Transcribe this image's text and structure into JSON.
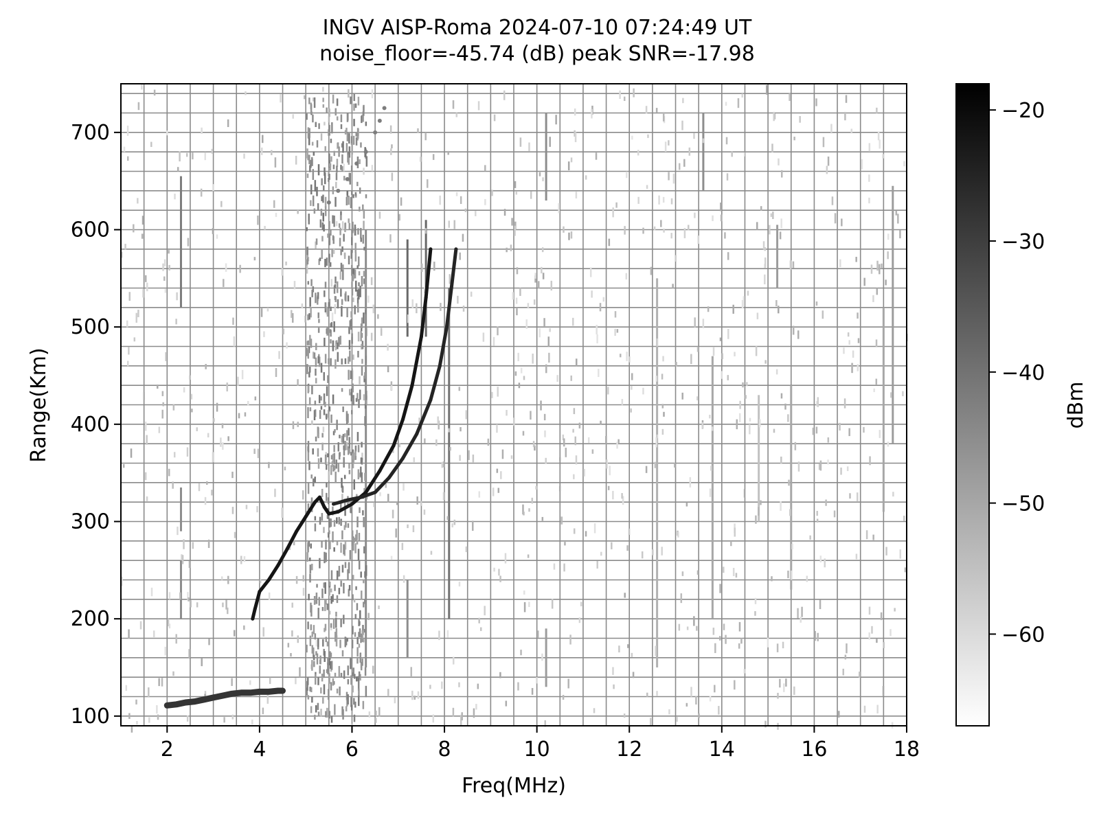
{
  "chart_data": {
    "type": "scatter",
    "title": "INGV AISP-Roma 2024-07-10 07:24:49 UT",
    "subtitle": "noise_floor=-45.74 (dB) peak SNR=-17.98",
    "xlabel": "Freq(MHz)",
    "ylabel": "Range(Km)",
    "xlim": [
      1,
      18
    ],
    "ylim": [
      90,
      750
    ],
    "xticks": [
      2,
      4,
      6,
      8,
      10,
      12,
      14,
      16,
      18
    ],
    "yticks": [
      100,
      200,
      300,
      400,
      500,
      600,
      700
    ],
    "grid": true,
    "grid_minor_x_step": 0.5,
    "grid_minor_y_step": 20,
    "colorbar": {
      "label": "dBm",
      "range": [
        -67,
        -18
      ],
      "ticks": [
        -20,
        -30,
        -40,
        -50,
        -60
      ],
      "tick_labels": [
        "−20",
        "−30",
        "−40",
        "−50",
        "−60"
      ],
      "colormap": [
        "#ffffff",
        "#000000"
      ]
    },
    "series": [
      {
        "role": "E-layer trace",
        "level_dBm": -28,
        "points": [
          [
            2.0,
            111
          ],
          [
            2.2,
            112
          ],
          [
            2.4,
            114
          ],
          [
            2.6,
            115
          ],
          [
            2.8,
            117
          ],
          [
            3.0,
            119
          ],
          [
            3.2,
            121
          ],
          [
            3.4,
            123
          ],
          [
            3.6,
            124
          ],
          [
            3.8,
            124
          ],
          [
            4.0,
            125
          ],
          [
            4.2,
            125
          ],
          [
            4.4,
            126
          ],
          [
            4.5,
            126
          ]
        ]
      },
      {
        "role": "F-layer ordinary trace",
        "level_dBm": -22,
        "points": [
          [
            3.85,
            200
          ],
          [
            3.9,
            210
          ],
          [
            4.0,
            228
          ],
          [
            4.2,
            240
          ],
          [
            4.4,
            255
          ],
          [
            4.6,
            272
          ],
          [
            4.8,
            290
          ],
          [
            5.0,
            305
          ],
          [
            5.2,
            320
          ],
          [
            5.3,
            325
          ],
          [
            5.4,
            315
          ],
          [
            5.5,
            308
          ],
          [
            5.7,
            310
          ],
          [
            6.0,
            318
          ],
          [
            6.3,
            330
          ],
          [
            6.6,
            352
          ],
          [
            6.9,
            378
          ],
          [
            7.1,
            405
          ],
          [
            7.3,
            440
          ],
          [
            7.5,
            490
          ],
          [
            7.6,
            530
          ],
          [
            7.7,
            580
          ]
        ]
      },
      {
        "role": "F-layer extraordinary trace",
        "level_dBm": -25,
        "points": [
          [
            5.6,
            318
          ],
          [
            5.9,
            322
          ],
          [
            6.2,
            325
          ],
          [
            6.5,
            330
          ],
          [
            6.8,
            345
          ],
          [
            7.1,
            365
          ],
          [
            7.4,
            390
          ],
          [
            7.7,
            425
          ],
          [
            7.9,
            460
          ],
          [
            8.05,
            500
          ],
          [
            8.15,
            540
          ],
          [
            8.25,
            580
          ]
        ]
      },
      {
        "role": "spread echoes",
        "level_dBm": -42,
        "points": [
          [
            6.5,
            700
          ],
          [
            6.6,
            712
          ],
          [
            6.7,
            725
          ],
          [
            6.3,
            680
          ],
          [
            6.1,
            668
          ],
          [
            5.9,
            652
          ],
          [
            5.7,
            640
          ],
          [
            5.5,
            628
          ]
        ]
      }
    ],
    "vertical_streaks": [
      {
        "freq": 2.3,
        "range": [
          520,
          655
        ],
        "level_dBm": -42
      },
      {
        "freq": 2.3,
        "range": [
          200,
          260
        ],
        "level_dBm": -45
      },
      {
        "freq": 2.3,
        "range": [
          290,
          335
        ],
        "level_dBm": -45
      },
      {
        "freq": 6.3,
        "range": [
          150,
          600
        ],
        "level_dBm": -45
      },
      {
        "freq": 7.2,
        "range": [
          490,
          590
        ],
        "level_dBm": -38
      },
      {
        "freq": 7.2,
        "range": [
          160,
          240
        ],
        "level_dBm": -45
      },
      {
        "freq": 7.6,
        "range": [
          490,
          610
        ],
        "level_dBm": -38
      },
      {
        "freq": 8.1,
        "range": [
          200,
          540
        ],
        "level_dBm": -40
      },
      {
        "freq": 10.2,
        "range": [
          630,
          720
        ],
        "level_dBm": -45
      },
      {
        "freq": 10.2,
        "range": [
          130,
          190
        ],
        "level_dBm": -48
      },
      {
        "freq": 12.6,
        "range": [
          150,
          550
        ],
        "level_dBm": -52
      },
      {
        "freq": 13.6,
        "range": [
          640,
          720
        ],
        "level_dBm": -45
      },
      {
        "freq": 13.8,
        "range": [
          200,
          470
        ],
        "level_dBm": -50
      },
      {
        "freq": 14.8,
        "range": [
          300,
          430
        ],
        "level_dBm": -55
      },
      {
        "freq": 15.2,
        "range": [
          540,
          605
        ],
        "level_dBm": -48
      },
      {
        "freq": 15.5,
        "range": [
          230,
          440
        ],
        "level_dBm": -50
      },
      {
        "freq": 17.5,
        "range": [
          310,
          520
        ],
        "level_dBm": -50
      },
      {
        "freq": 17.7,
        "range": [
          380,
          645
        ],
        "level_dBm": -48
      }
    ]
  }
}
